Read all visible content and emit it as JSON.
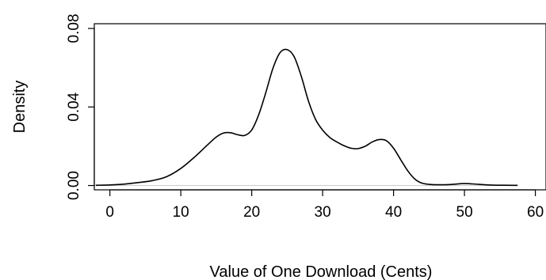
{
  "chart_data": {
    "type": "line",
    "xlabel": "Value of One Download (Cents)",
    "ylabel": "Density",
    "xlim": [
      -2.2,
      61.5
    ],
    "ylim": [
      -0.0022,
      0.0824
    ],
    "x_ticks": [
      0,
      10,
      20,
      30,
      40,
      50,
      60
    ],
    "x_tick_labels": [
      "0",
      "10",
      "20",
      "30",
      "40",
      "50",
      "60"
    ],
    "y_ticks": [
      0,
      0.04,
      0.08
    ],
    "y_tick_labels": [
      "0.00",
      "0.04",
      "0.08"
    ],
    "grid": false,
    "zero_reference_line": true,
    "series": [
      {
        "color": "#000000",
        "x": [
          -2,
          0,
          2,
          4,
          6,
          8,
          10,
          12,
          14,
          15,
          16,
          17,
          18,
          19,
          20,
          21,
          22,
          23,
          24,
          25,
          26,
          27,
          28,
          29,
          30,
          31,
          32,
          33,
          34,
          35,
          36,
          37,
          38,
          39,
          40,
          41,
          42,
          43,
          44,
          45,
          46,
          48,
          50,
          52,
          54,
          57.5
        ],
        "y": [
          0.0001,
          0.0003,
          0.0007,
          0.0015,
          0.0025,
          0.0045,
          0.0087,
          0.0147,
          0.0215,
          0.0247,
          0.0267,
          0.0269,
          0.0259,
          0.0255,
          0.0283,
          0.0362,
          0.0475,
          0.0598,
          0.0677,
          0.0692,
          0.0655,
          0.0555,
          0.043,
          0.0337,
          0.0282,
          0.0245,
          0.0222,
          0.0203,
          0.019,
          0.0188,
          0.02,
          0.0222,
          0.0234,
          0.0228,
          0.019,
          0.0132,
          0.0075,
          0.0033,
          0.0012,
          0.0006,
          0.0004,
          0.0005,
          0.001,
          0.0006,
          0.0002,
          0.0001
        ]
      }
    ]
  }
}
